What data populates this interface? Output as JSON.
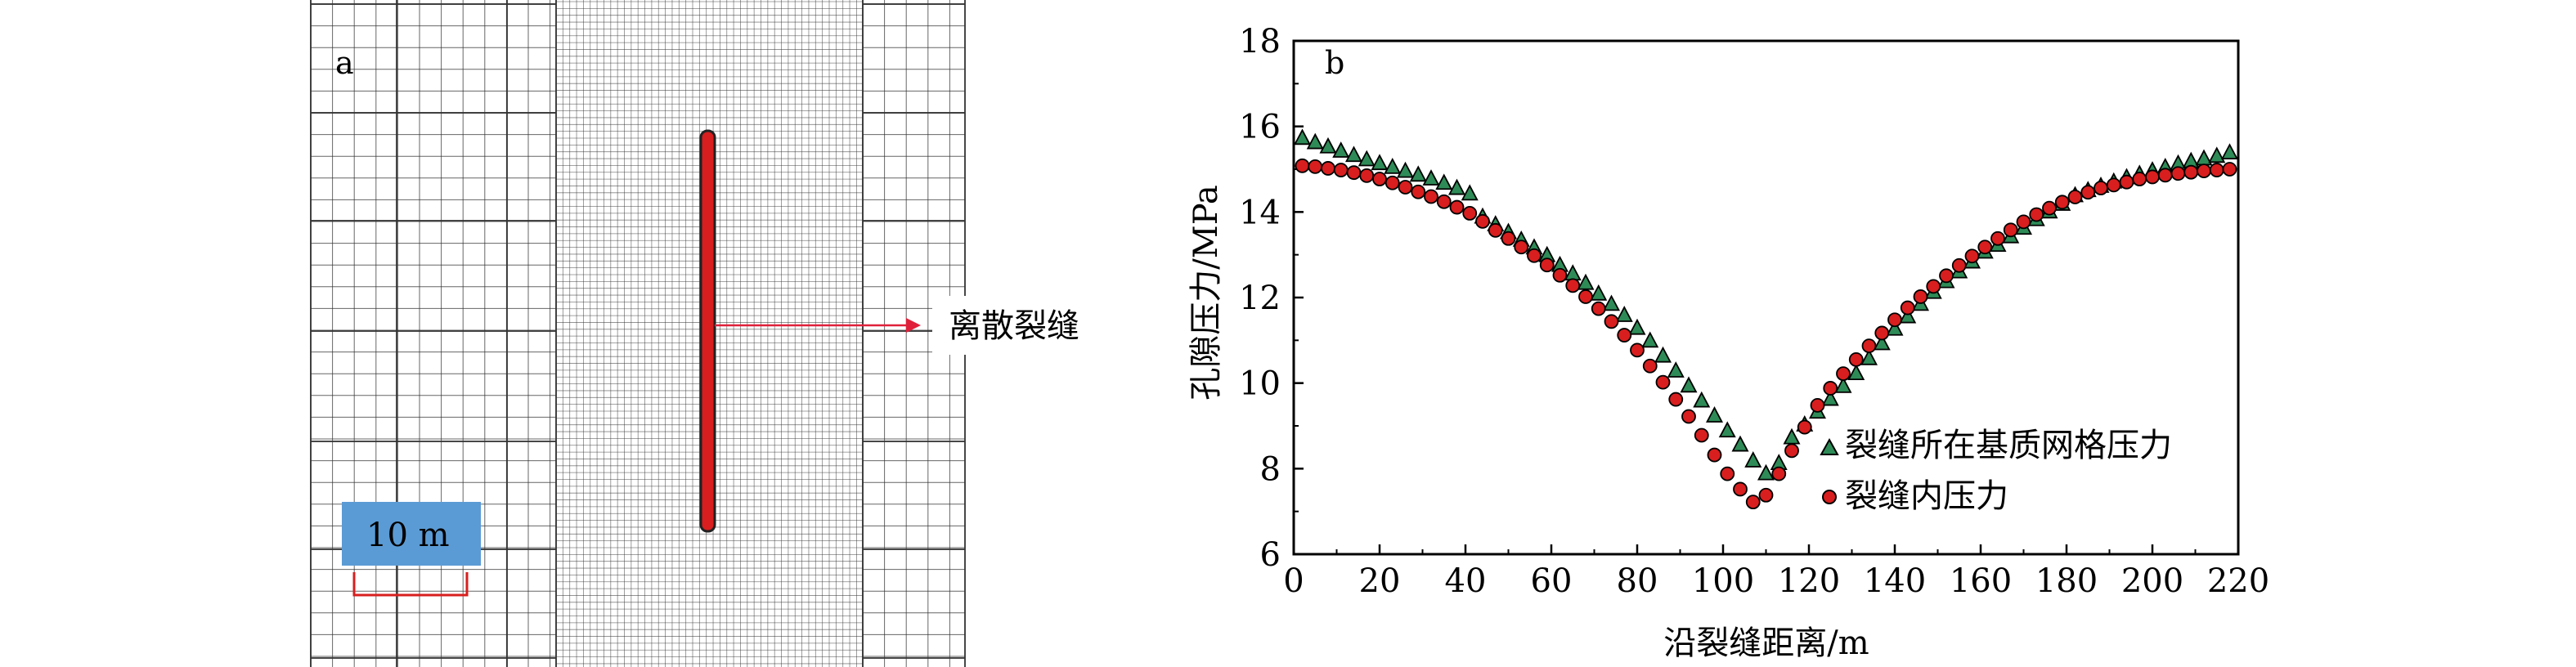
{
  "panel_a": {
    "label": "a",
    "fracture_label": "离散裂缝",
    "scale_label": "10 m",
    "colors": {
      "fracture": "#d81e1e",
      "scale_box": "#5b9bd5",
      "scale_bar": "#d81e1e",
      "grid": "#333333",
      "arrow": "#e0203a"
    }
  },
  "panel_b": {
    "label": "b",
    "legend": [
      {
        "text": "裂缝所在基质网格压力",
        "marker": "triangle",
        "color": "#2e8b57"
      },
      {
        "text": "裂缝内压力",
        "marker": "circle",
        "color": "#d81e1e"
      }
    ]
  },
  "chart_data": {
    "type": "scatter",
    "xlabel": "沿裂缝距离/m",
    "ylabel": "孔隙压力/MPa",
    "xlim": [
      0,
      220
    ],
    "ylim": [
      6,
      18
    ],
    "xticks": [
      0,
      20,
      40,
      60,
      80,
      100,
      120,
      140,
      160,
      180,
      200,
      220
    ],
    "yticks": [
      6,
      8,
      10,
      12,
      14,
      16,
      18
    ],
    "legend_position": "right",
    "series": [
      {
        "name": "裂缝所在基质网格压力",
        "marker": "triangle",
        "color": "#2e8b57",
        "x": [
          2,
          5,
          8,
          11,
          14,
          17,
          20,
          23,
          26,
          29,
          32,
          35,
          38,
          41,
          44,
          47,
          50,
          53,
          56,
          59,
          62,
          65,
          68,
          71,
          74,
          77,
          80,
          83,
          86,
          89,
          92,
          95,
          98,
          101,
          104,
          107,
          110,
          113,
          116,
          119,
          122,
          125,
          128,
          131,
          134,
          137,
          140,
          143,
          146,
          149,
          152,
          155,
          158,
          161,
          164,
          167,
          170,
          173,
          176,
          179,
          182,
          185,
          188,
          191,
          194,
          197,
          200,
          203,
          206,
          209,
          212,
          215,
          218
        ],
        "y": [
          15.72,
          15.62,
          15.52,
          15.42,
          15.32,
          15.22,
          15.13,
          15.04,
          14.95,
          14.86,
          14.77,
          14.67,
          14.55,
          14.42,
          13.88,
          13.7,
          13.52,
          13.34,
          13.16,
          12.98,
          12.75,
          12.55,
          12.33,
          12.08,
          11.84,
          11.58,
          11.28,
          10.98,
          10.63,
          10.28,
          9.93,
          9.58,
          9.23,
          8.88,
          8.55,
          8.18,
          7.88,
          8.12,
          8.72,
          9.02,
          9.32,
          9.62,
          9.92,
          10.22,
          10.57,
          10.92,
          11.26,
          11.55,
          11.84,
          12.12,
          12.37,
          12.6,
          12.83,
          13.06,
          13.22,
          13.42,
          13.62,
          13.82,
          14.0,
          14.18,
          14.38,
          14.5,
          14.6,
          14.7,
          14.8,
          14.88,
          14.96,
          15.04,
          15.12,
          15.18,
          15.24,
          15.3,
          15.38
        ]
      },
      {
        "name": "裂缝内压力",
        "marker": "circle",
        "color": "#d81e1e",
        "x": [
          2,
          5,
          8,
          11,
          14,
          17,
          20,
          23,
          26,
          29,
          32,
          35,
          38,
          41,
          44,
          47,
          50,
          53,
          56,
          59,
          62,
          65,
          68,
          71,
          74,
          77,
          80,
          83,
          86,
          89,
          92,
          95,
          98,
          101,
          104,
          107,
          110,
          113,
          116,
          119,
          122,
          125,
          128,
          131,
          134,
          137,
          140,
          143,
          146,
          149,
          152,
          155,
          158,
          161,
          164,
          167,
          170,
          173,
          176,
          179,
          182,
          185,
          188,
          191,
          194,
          197,
          200,
          203,
          206,
          209,
          212,
          215,
          218
        ],
        "y": [
          15.08,
          15.06,
          15.02,
          14.98,
          14.92,
          14.85,
          14.77,
          14.68,
          14.58,
          14.47,
          14.36,
          14.24,
          14.11,
          13.97,
          13.78,
          13.57,
          13.38,
          13.18,
          12.98,
          12.76,
          12.52,
          12.28,
          12.02,
          11.74,
          11.44,
          11.12,
          10.77,
          10.4,
          10.02,
          9.62,
          9.22,
          8.78,
          8.32,
          7.88,
          7.52,
          7.22,
          7.38,
          7.88,
          8.42,
          8.97,
          9.48,
          9.88,
          10.22,
          10.55,
          10.87,
          11.17,
          11.48,
          11.76,
          12.02,
          12.26,
          12.51,
          12.75,
          12.97,
          13.18,
          13.38,
          13.58,
          13.77,
          13.94,
          14.09,
          14.23,
          14.35,
          14.46,
          14.56,
          14.63,
          14.7,
          14.77,
          14.82,
          14.86,
          14.9,
          14.93,
          14.96,
          14.98,
          15.0
        ]
      }
    ]
  }
}
